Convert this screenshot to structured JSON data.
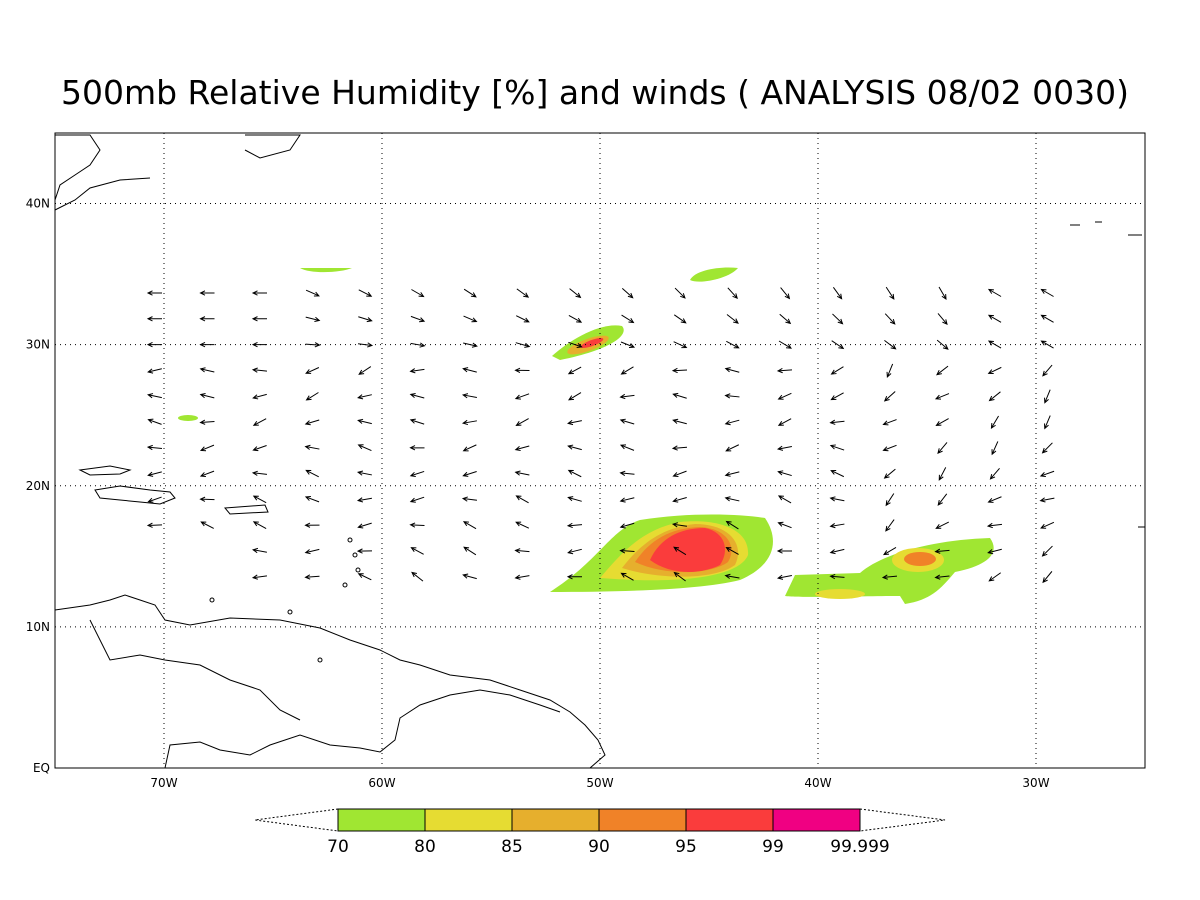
{
  "header": {
    "title": "500mb Relative Humidity [%] and winds ( ANALYSIS 08/02 0030)"
  },
  "map": {
    "lon_range": [
      -75,
      -25
    ],
    "lat_range": [
      0,
      45
    ],
    "lon_ticks": [
      {
        "value": -70,
        "label": "70W"
      },
      {
        "value": -60,
        "label": "60W"
      },
      {
        "value": -50,
        "label": "50W"
      },
      {
        "value": -40,
        "label": "40W"
      },
      {
        "value": -30,
        "label": "30W"
      }
    ],
    "lat_ticks": [
      {
        "value": 0,
        "label": "EQ"
      },
      {
        "value": 10,
        "label": "10N"
      },
      {
        "value": 20,
        "label": "20N"
      },
      {
        "value": 30,
        "label": "30N"
      },
      {
        "value": 40,
        "label": "40N"
      }
    ]
  },
  "colorbar": {
    "levels": [
      70,
      80,
      85,
      90,
      95,
      99,
      99.999
    ],
    "colors": [
      "#a0e632",
      "#e6dc32",
      "#e6af2d",
      "#f08228",
      "#fa3c3c",
      "#f00082"
    ]
  }
}
